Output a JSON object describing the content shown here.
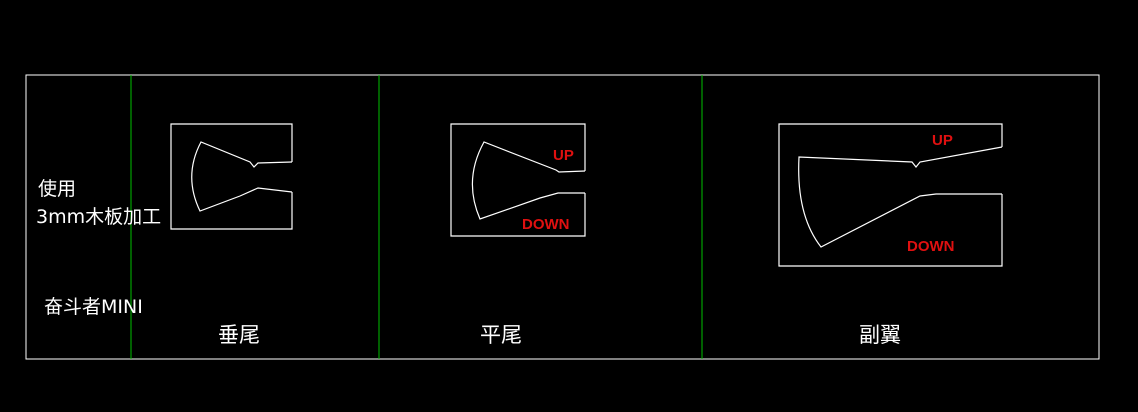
{
  "colors": {
    "background": "#000000",
    "line": "#ffffff",
    "divider": "#00c000",
    "annotation": "#e01010"
  },
  "notes": {
    "line1": "使用",
    "line2": "3mm木板加工",
    "model": "奋斗者MINI"
  },
  "panels": {
    "vertical_tail": {
      "label": "垂尾"
    },
    "horizontal_tail": {
      "label": "平尾",
      "up": "UP",
      "down": "DOWN"
    },
    "aileron": {
      "label": "副翼",
      "up": "UP",
      "down": "DOWN"
    }
  }
}
